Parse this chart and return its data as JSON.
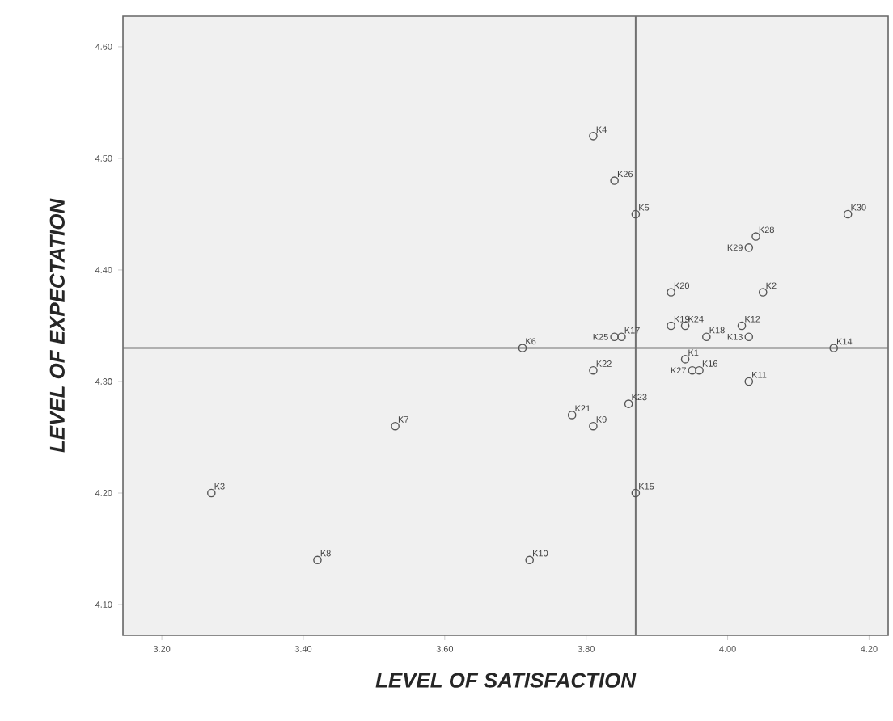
{
  "chart_data": {
    "type": "scatter",
    "xlabel": "LEVEL OF SATISFACTION",
    "ylabel": "LEVEL OF EXPECTATION",
    "x": [
      3.94,
      4.05,
      3.27,
      3.81,
      3.87,
      3.71,
      3.53,
      3.42,
      3.81,
      3.72,
      4.03,
      4.02,
      4.03,
      4.15,
      3.87,
      3.96,
      3.85,
      3.97,
      3.92,
      3.92,
      3.78,
      3.81,
      3.86,
      3.94,
      3.84,
      3.84,
      3.95,
      4.04,
      4.03,
      4.17
    ],
    "series": [
      {
        "color": "#555555",
        "values": [
          4.32,
          4.38,
          4.2,
          4.52,
          4.45,
          4.33,
          4.26,
          4.14,
          4.26,
          4.14,
          4.3,
          4.35,
          4.34,
          4.33,
          4.2,
          4.31,
          4.34,
          4.34,
          4.35,
          4.38,
          4.27,
          4.31,
          4.28,
          4.35,
          4.34,
          4.48,
          4.31,
          4.43,
          4.42,
          4.45
        ]
      }
    ],
    "annotations": [
      {
        "text": "K1",
        "x": 3.94,
        "y": 4.32
      },
      {
        "text": "K2",
        "x": 4.05,
        "y": 4.38
      },
      {
        "text": "K3",
        "x": 3.27,
        "y": 4.2
      },
      {
        "text": "K4",
        "x": 3.81,
        "y": 4.52
      },
      {
        "text": "K5",
        "x": 3.87,
        "y": 4.45
      },
      {
        "text": "K6",
        "x": 3.71,
        "y": 4.33
      },
      {
        "text": "K7",
        "x": 3.53,
        "y": 4.26
      },
      {
        "text": "K8",
        "x": 3.42,
        "y": 4.14
      },
      {
        "text": "K9",
        "x": 3.81,
        "y": 4.26
      },
      {
        "text": "K10",
        "x": 3.72,
        "y": 4.14
      },
      {
        "text": "K11",
        "x": 4.03,
        "y": 4.3
      },
      {
        "text": "K12",
        "x": 4.02,
        "y": 4.35
      },
      {
        "text": "K13",
        "x": 4.03,
        "y": 4.34
      },
      {
        "text": "K14",
        "x": 4.15,
        "y": 4.33
      },
      {
        "text": "K15",
        "x": 3.87,
        "y": 4.2
      },
      {
        "text": "K16",
        "x": 3.96,
        "y": 4.31
      },
      {
        "text": "K17",
        "x": 3.85,
        "y": 4.34
      },
      {
        "text": "K18",
        "x": 3.97,
        "y": 4.34
      },
      {
        "text": "K19",
        "x": 3.92,
        "y": 4.35
      },
      {
        "text": "K20",
        "x": 3.92,
        "y": 4.38
      },
      {
        "text": "K21",
        "x": 3.78,
        "y": 4.27
      },
      {
        "text": "K22",
        "x": 3.81,
        "y": 4.31
      },
      {
        "text": "K23",
        "x": 3.86,
        "y": 4.28
      },
      {
        "text": "K24",
        "x": 3.94,
        "y": 4.35
      },
      {
        "text": "K25",
        "x": 3.84,
        "y": 4.34
      },
      {
        "text": "K26",
        "x": 3.84,
        "y": 4.48
      },
      {
        "text": "K27",
        "x": 3.95,
        "y": 4.31
      },
      {
        "text": "K28",
        "x": 4.04,
        "y": 4.43
      },
      {
        "text": "K29",
        "x": 4.03,
        "y": 4.42
      },
      {
        "text": "K30",
        "x": 4.17,
        "y": 4.45
      }
    ],
    "ref_lines": [
      {
        "axis": "x",
        "value": 3.87,
        "color": "#707070"
      },
      {
        "axis": "y",
        "value": 4.33,
        "color": "#707070"
      }
    ],
    "xlim": [
      3.145,
      4.227
    ],
    "ylim": [
      4.0725,
      4.6275
    ],
    "xticks": [
      {
        "value": 3.2,
        "label": "3.20"
      },
      {
        "value": 3.4,
        "label": "3.40"
      },
      {
        "value": 3.6,
        "label": "3.60"
      },
      {
        "value": 3.8,
        "label": "3.80"
      },
      {
        "value": 4.0,
        "label": "4.00"
      },
      {
        "value": 4.2,
        "label": "4.20"
      }
    ],
    "yticks": [
      {
        "value": 4.1,
        "label": "4.10"
      },
      {
        "value": 4.2,
        "label": "4.20"
      },
      {
        "value": 4.3,
        "label": "4.30"
      },
      {
        "value": 4.4,
        "label": "4.40"
      },
      {
        "value": 4.5,
        "label": "4.50"
      },
      {
        "value": 4.6,
        "label": "4.60"
      }
    ],
    "marker": "circle"
  }
}
